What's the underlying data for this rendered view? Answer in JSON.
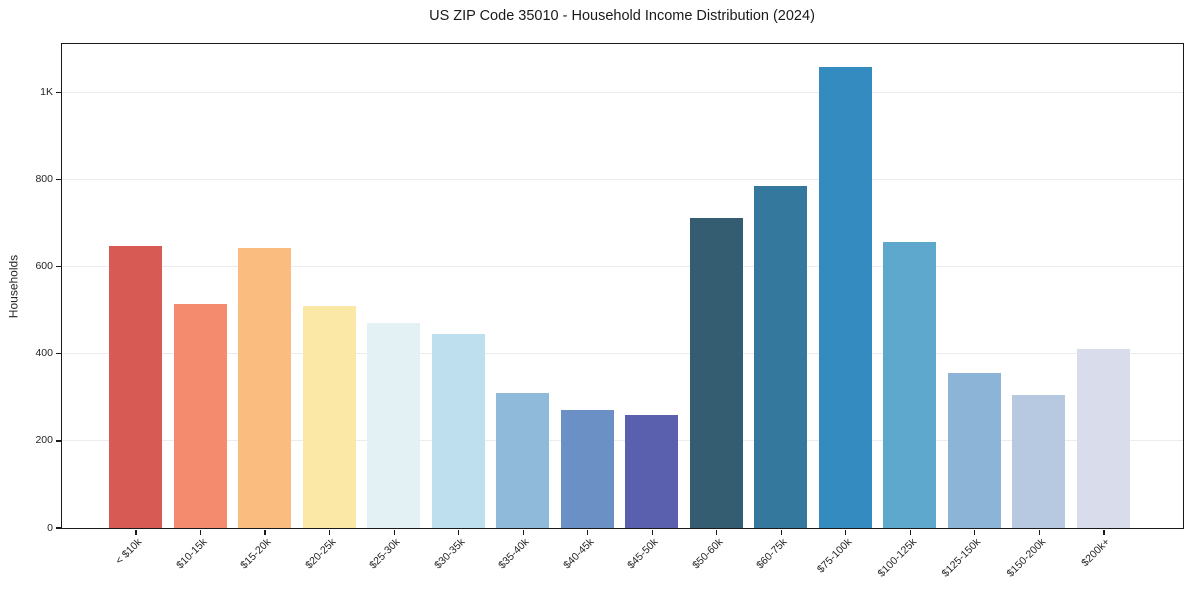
{
  "chart_data": {
    "type": "bar",
    "title": "US ZIP Code 35010 - Household Income Distribution (2024)",
    "xlabel": "",
    "ylabel": "Households",
    "categories": [
      "< $10k",
      "$10-15k",
      "$15-20k",
      "$20-25k",
      "$25-30k",
      "$30-35k",
      "$35-40k",
      "$40-45k",
      "$45-50k",
      "$50-60k",
      "$60-75k",
      "$75-100k",
      "$100-125k",
      "$125-150k",
      "$150-200k",
      "$200k+"
    ],
    "values": [
      647,
      513,
      643,
      509,
      471,
      444,
      310,
      271,
      259,
      712,
      784,
      1058,
      657,
      355,
      305,
      411
    ],
    "bar_colors": [
      "#d75a55",
      "#f58b6e",
      "#fbbc7f",
      "#fce8a6",
      "#e3f1f5",
      "#bee0ee",
      "#8fbada",
      "#6b90c5",
      "#5a5fae",
      "#355d72",
      "#35789d",
      "#348bc0",
      "#5ea7cd",
      "#8cb4d6",
      "#b7c9e0",
      "#d9dcea"
    ],
    "yticks": [
      {
        "value": 0,
        "label": "0"
      },
      {
        "value": 200,
        "label": "200"
      },
      {
        "value": 400,
        "label": "400"
      },
      {
        "value": 600,
        "label": "600"
      },
      {
        "value": 800,
        "label": "800"
      },
      {
        "value": 1000,
        "label": "1K"
      }
    ],
    "ylim": [
      0,
      1112
    ],
    "grid": true,
    "legend": "none",
    "grid_color": "#ebebf0",
    "spine_color": "#1a1a1a",
    "text_color": "#262626"
  }
}
